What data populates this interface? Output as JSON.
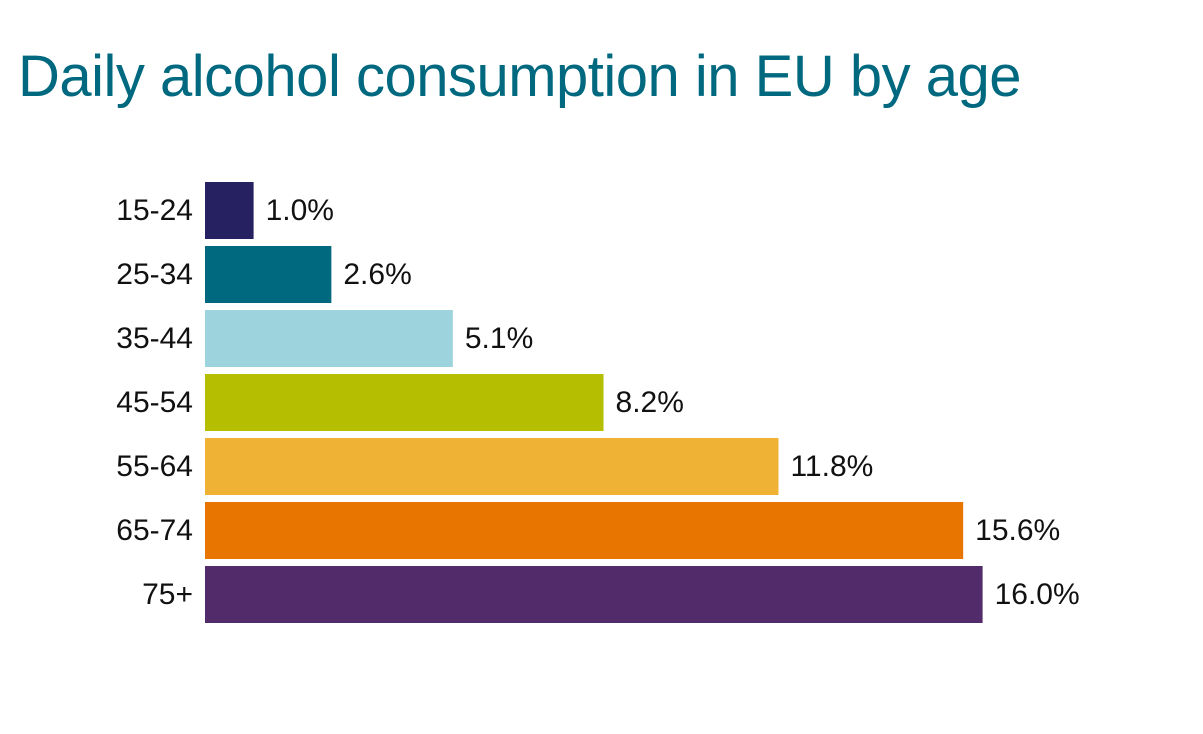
{
  "title_color": "#00697f",
  "chart_data": {
    "type": "bar",
    "orientation": "horizontal",
    "title": "Daily alcohol consumption in EU by age",
    "xlabel": "",
    "ylabel": "",
    "grid": false,
    "legend": "none",
    "xlim": [
      0,
      16
    ],
    "categories": [
      "15-24",
      "25-34",
      "35-44",
      "45-54",
      "55-64",
      "65-74",
      "75+"
    ],
    "values": [
      1.0,
      2.6,
      5.1,
      8.2,
      11.8,
      15.6,
      16.0
    ],
    "value_labels": [
      "1.0%",
      "2.6%",
      "5.1%",
      "8.2%",
      "11.8%",
      "15.6%",
      "16.0%"
    ],
    "colors": [
      "#262262",
      "#00697f",
      "#9dd3dc",
      "#b5be00",
      "#f0b234",
      "#e87500",
      "#522b6b"
    ]
  }
}
